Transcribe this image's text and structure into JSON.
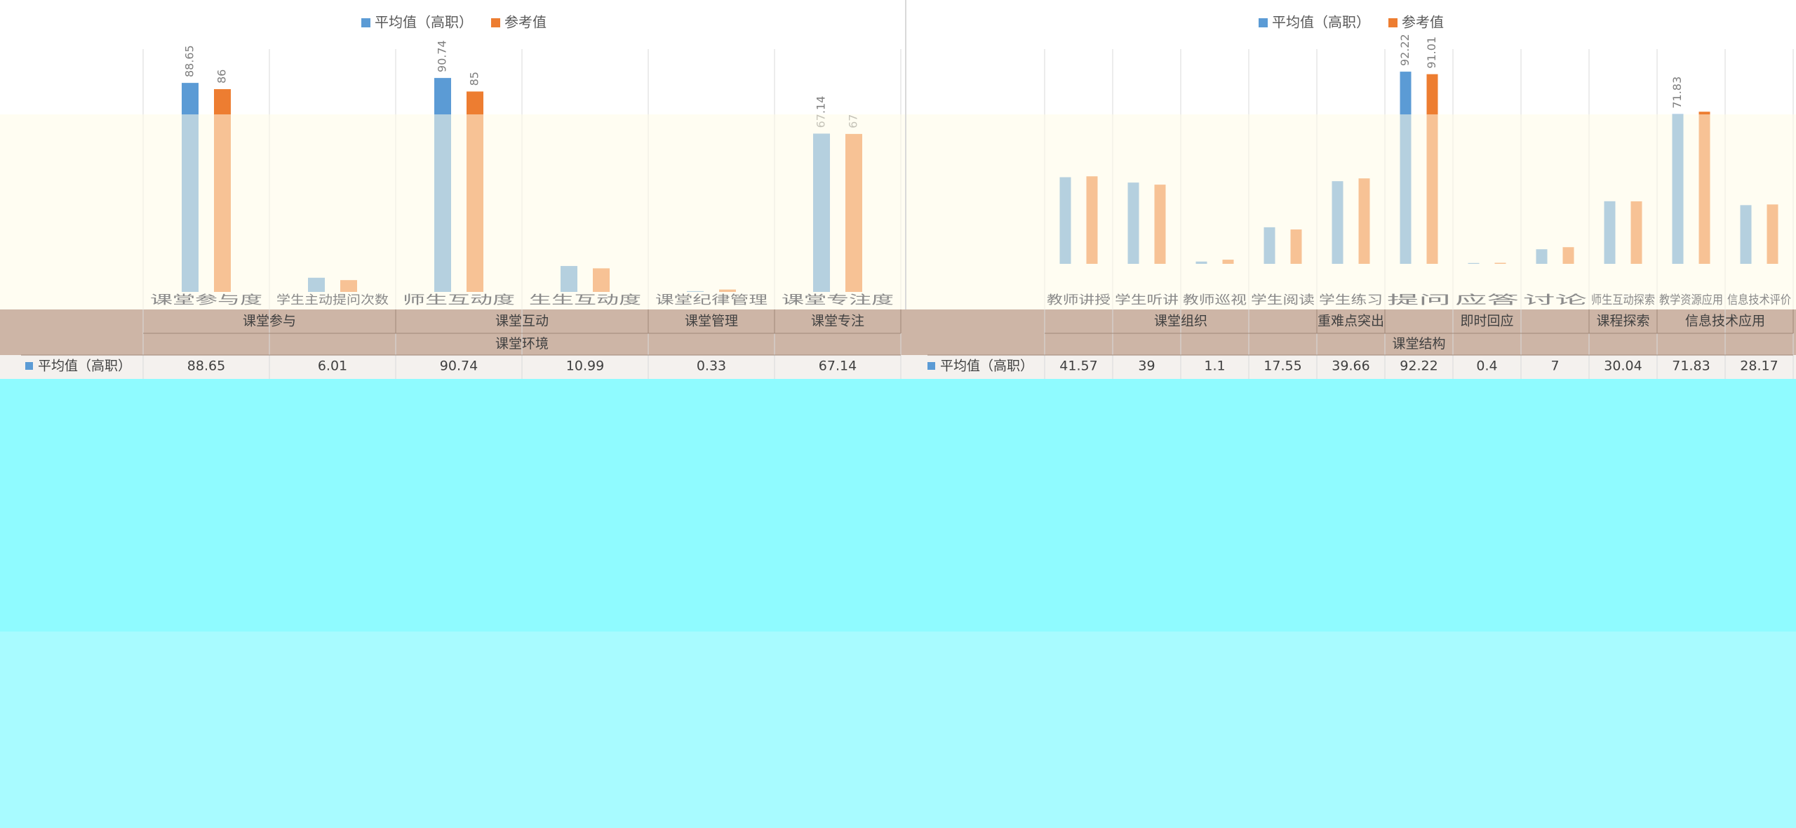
{
  "chart_data": [
    {
      "type": "bar",
      "categories": [
        "课堂参与度",
        "学生主动提问次数",
        "师生互动度",
        "生生互动度",
        "课堂纪律管理",
        "课堂专注度"
      ],
      "category_groups": [
        "课堂参与",
        "课堂参与",
        "课堂互动",
        "课堂互动",
        "课堂管理",
        "课堂专注"
      ],
      "super_group": "课堂环境",
      "series": [
        {
          "name": "平均值（高职）",
          "color": "#5b9bd5",
          "values": [
            88.65,
            6.01,
            90.74,
            10.99,
            0.33,
            67.14
          ],
          "value_labels": [
            "88.65",
            null,
            "90.74",
            null,
            null,
            "67.14"
          ]
        },
        {
          "name": "参考值",
          "color": "#ed7d31",
          "values": [
            86,
            5,
            85,
            10,
            1,
            67
          ],
          "value_labels": [
            "86",
            null,
            "85",
            null,
            null,
            "67"
          ]
        }
      ],
      "ylim": [
        0,
        100
      ],
      "legend": "top"
    },
    {
      "type": "bar",
      "categories": [
        "教师讲授",
        "学生听讲",
        "教师巡视",
        "学生阅读",
        "学生练习",
        "提问",
        "应答",
        "讨论",
        "师生互动探索",
        "教学资源应用",
        "信息技术评价"
      ],
      "category_groups": [
        "课堂组织",
        "课堂组织",
        "课堂组织",
        "课堂组织",
        "重难点突出",
        "即时回应",
        "即时回应",
        "即时回应",
        "课程探索",
        "信息技术应用",
        "信息技术应用"
      ],
      "super_group": "课堂结构",
      "series": [
        {
          "name": "平均值（高职）",
          "color": "#5b9bd5",
          "values": [
            41.57,
            39,
            1.1,
            17.55,
            39.66,
            92.22,
            0.4,
            7,
            30.04,
            71.83,
            28.17
          ],
          "value_labels": [
            null,
            null,
            null,
            null,
            null,
            "92.22",
            null,
            null,
            null,
            "71.83",
            null
          ]
        },
        {
          "name": "参考值",
          "color": "#ed7d31",
          "values": [
            42,
            38,
            2,
            16.5,
            41,
            91.01,
            0.5,
            8,
            30,
            73,
            28.5
          ],
          "value_labels": [
            null,
            null,
            null,
            null,
            null,
            "91.01",
            null,
            null,
            null,
            null,
            null
          ]
        }
      ],
      "ylim": [
        0,
        100
      ],
      "legend": "top"
    }
  ]
}
